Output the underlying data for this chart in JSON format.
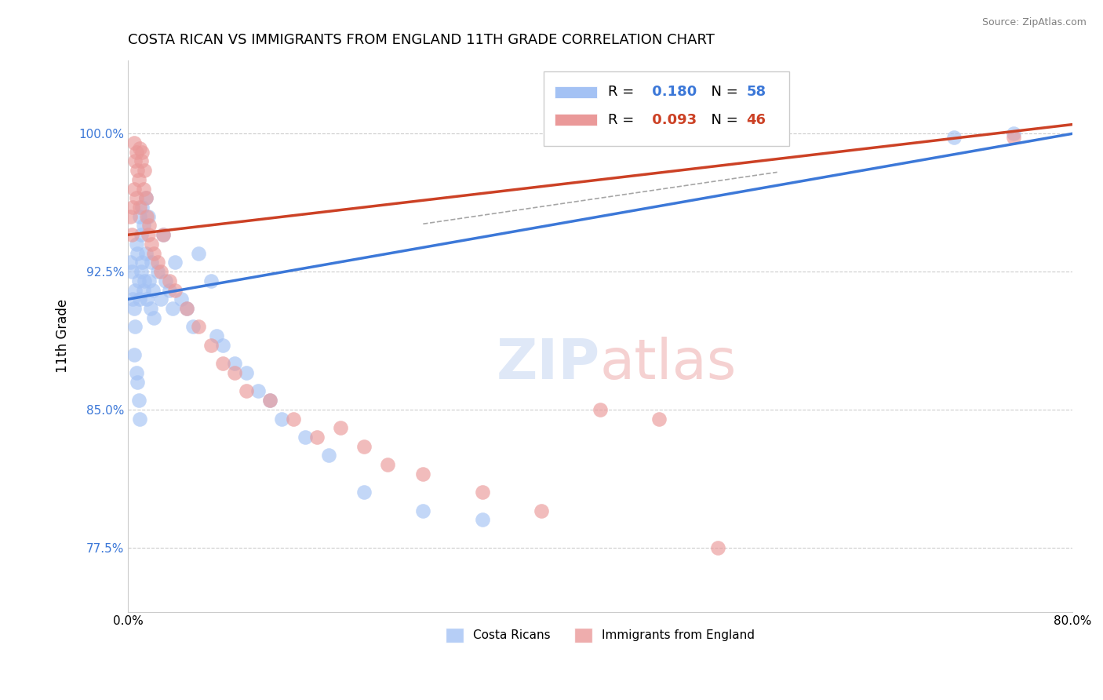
{
  "title": "COSTA RICAN VS IMMIGRANTS FROM ENGLAND 11TH GRADE CORRELATION CHART",
  "source": "Source: ZipAtlas.com",
  "ylabel": "11th Grade",
  "xlim": [
    0.0,
    80.0
  ],
  "ylim": [
    74.0,
    104.0
  ],
  "yticks": [
    77.5,
    85.0,
    92.5,
    100.0
  ],
  "ytick_labels": [
    "77.5%",
    "85.0%",
    "92.5%",
    "100.0%"
  ],
  "blue_R": 0.18,
  "blue_N": 58,
  "pink_R": 0.093,
  "pink_N": 46,
  "blue_color": "#a4c2f4",
  "pink_color": "#ea9999",
  "blue_line_color": "#3c78d8",
  "pink_line_color": "#cc4125",
  "blue_x": [
    0.2,
    0.3,
    0.4,
    0.5,
    0.5,
    0.6,
    0.6,
    0.7,
    0.7,
    0.8,
    0.8,
    0.9,
    0.9,
    1.0,
    1.0,
    1.0,
    1.1,
    1.1,
    1.2,
    1.2,
    1.3,
    1.3,
    1.4,
    1.5,
    1.5,
    1.6,
    1.7,
    1.8,
    1.9,
    2.0,
    2.1,
    2.2,
    2.5,
    2.8,
    3.0,
    3.2,
    3.5,
    3.8,
    4.0,
    4.5,
    5.0,
    5.5,
    6.0,
    7.0,
    7.5,
    8.0,
    9.0,
    10.0,
    11.0,
    12.0,
    13.0,
    15.0,
    17.0,
    20.0,
    25.0,
    30.0,
    70.0,
    75.0
  ],
  "blue_y": [
    93.0,
    92.5,
    91.0,
    90.5,
    88.0,
    91.5,
    89.5,
    94.0,
    87.0,
    93.5,
    86.5,
    92.0,
    85.5,
    95.5,
    91.0,
    84.5,
    94.5,
    92.5,
    96.0,
    93.0,
    95.0,
    91.5,
    92.0,
    96.5,
    93.5,
    91.0,
    95.5,
    92.0,
    90.5,
    93.0,
    91.5,
    90.0,
    92.5,
    91.0,
    94.5,
    92.0,
    91.5,
    90.5,
    93.0,
    91.0,
    90.5,
    89.5,
    93.5,
    92.0,
    89.0,
    88.5,
    87.5,
    87.0,
    86.0,
    85.5,
    84.5,
    83.5,
    82.5,
    80.5,
    79.5,
    79.0,
    99.8,
    100.0
  ],
  "pink_x": [
    0.2,
    0.3,
    0.4,
    0.5,
    0.5,
    0.6,
    0.7,
    0.7,
    0.8,
    0.9,
    1.0,
    1.0,
    1.1,
    1.2,
    1.3,
    1.4,
    1.5,
    1.6,
    1.7,
    1.8,
    2.0,
    2.2,
    2.5,
    2.8,
    3.0,
    3.5,
    4.0,
    5.0,
    6.0,
    7.0,
    8.0,
    9.0,
    10.0,
    12.0,
    14.0,
    16.0,
    18.0,
    20.0,
    22.0,
    25.0,
    30.0,
    35.0,
    40.0,
    45.0,
    50.0,
    75.0
  ],
  "pink_y": [
    95.5,
    94.5,
    96.0,
    99.5,
    97.0,
    98.5,
    99.0,
    96.5,
    98.0,
    97.5,
    99.2,
    96.0,
    98.5,
    99.0,
    97.0,
    98.0,
    96.5,
    95.5,
    94.5,
    95.0,
    94.0,
    93.5,
    93.0,
    92.5,
    94.5,
    92.0,
    91.5,
    90.5,
    89.5,
    88.5,
    87.5,
    87.0,
    86.0,
    85.5,
    84.5,
    83.5,
    84.0,
    83.0,
    82.0,
    81.5,
    80.5,
    79.5,
    85.0,
    84.5,
    77.5,
    99.8
  ]
}
